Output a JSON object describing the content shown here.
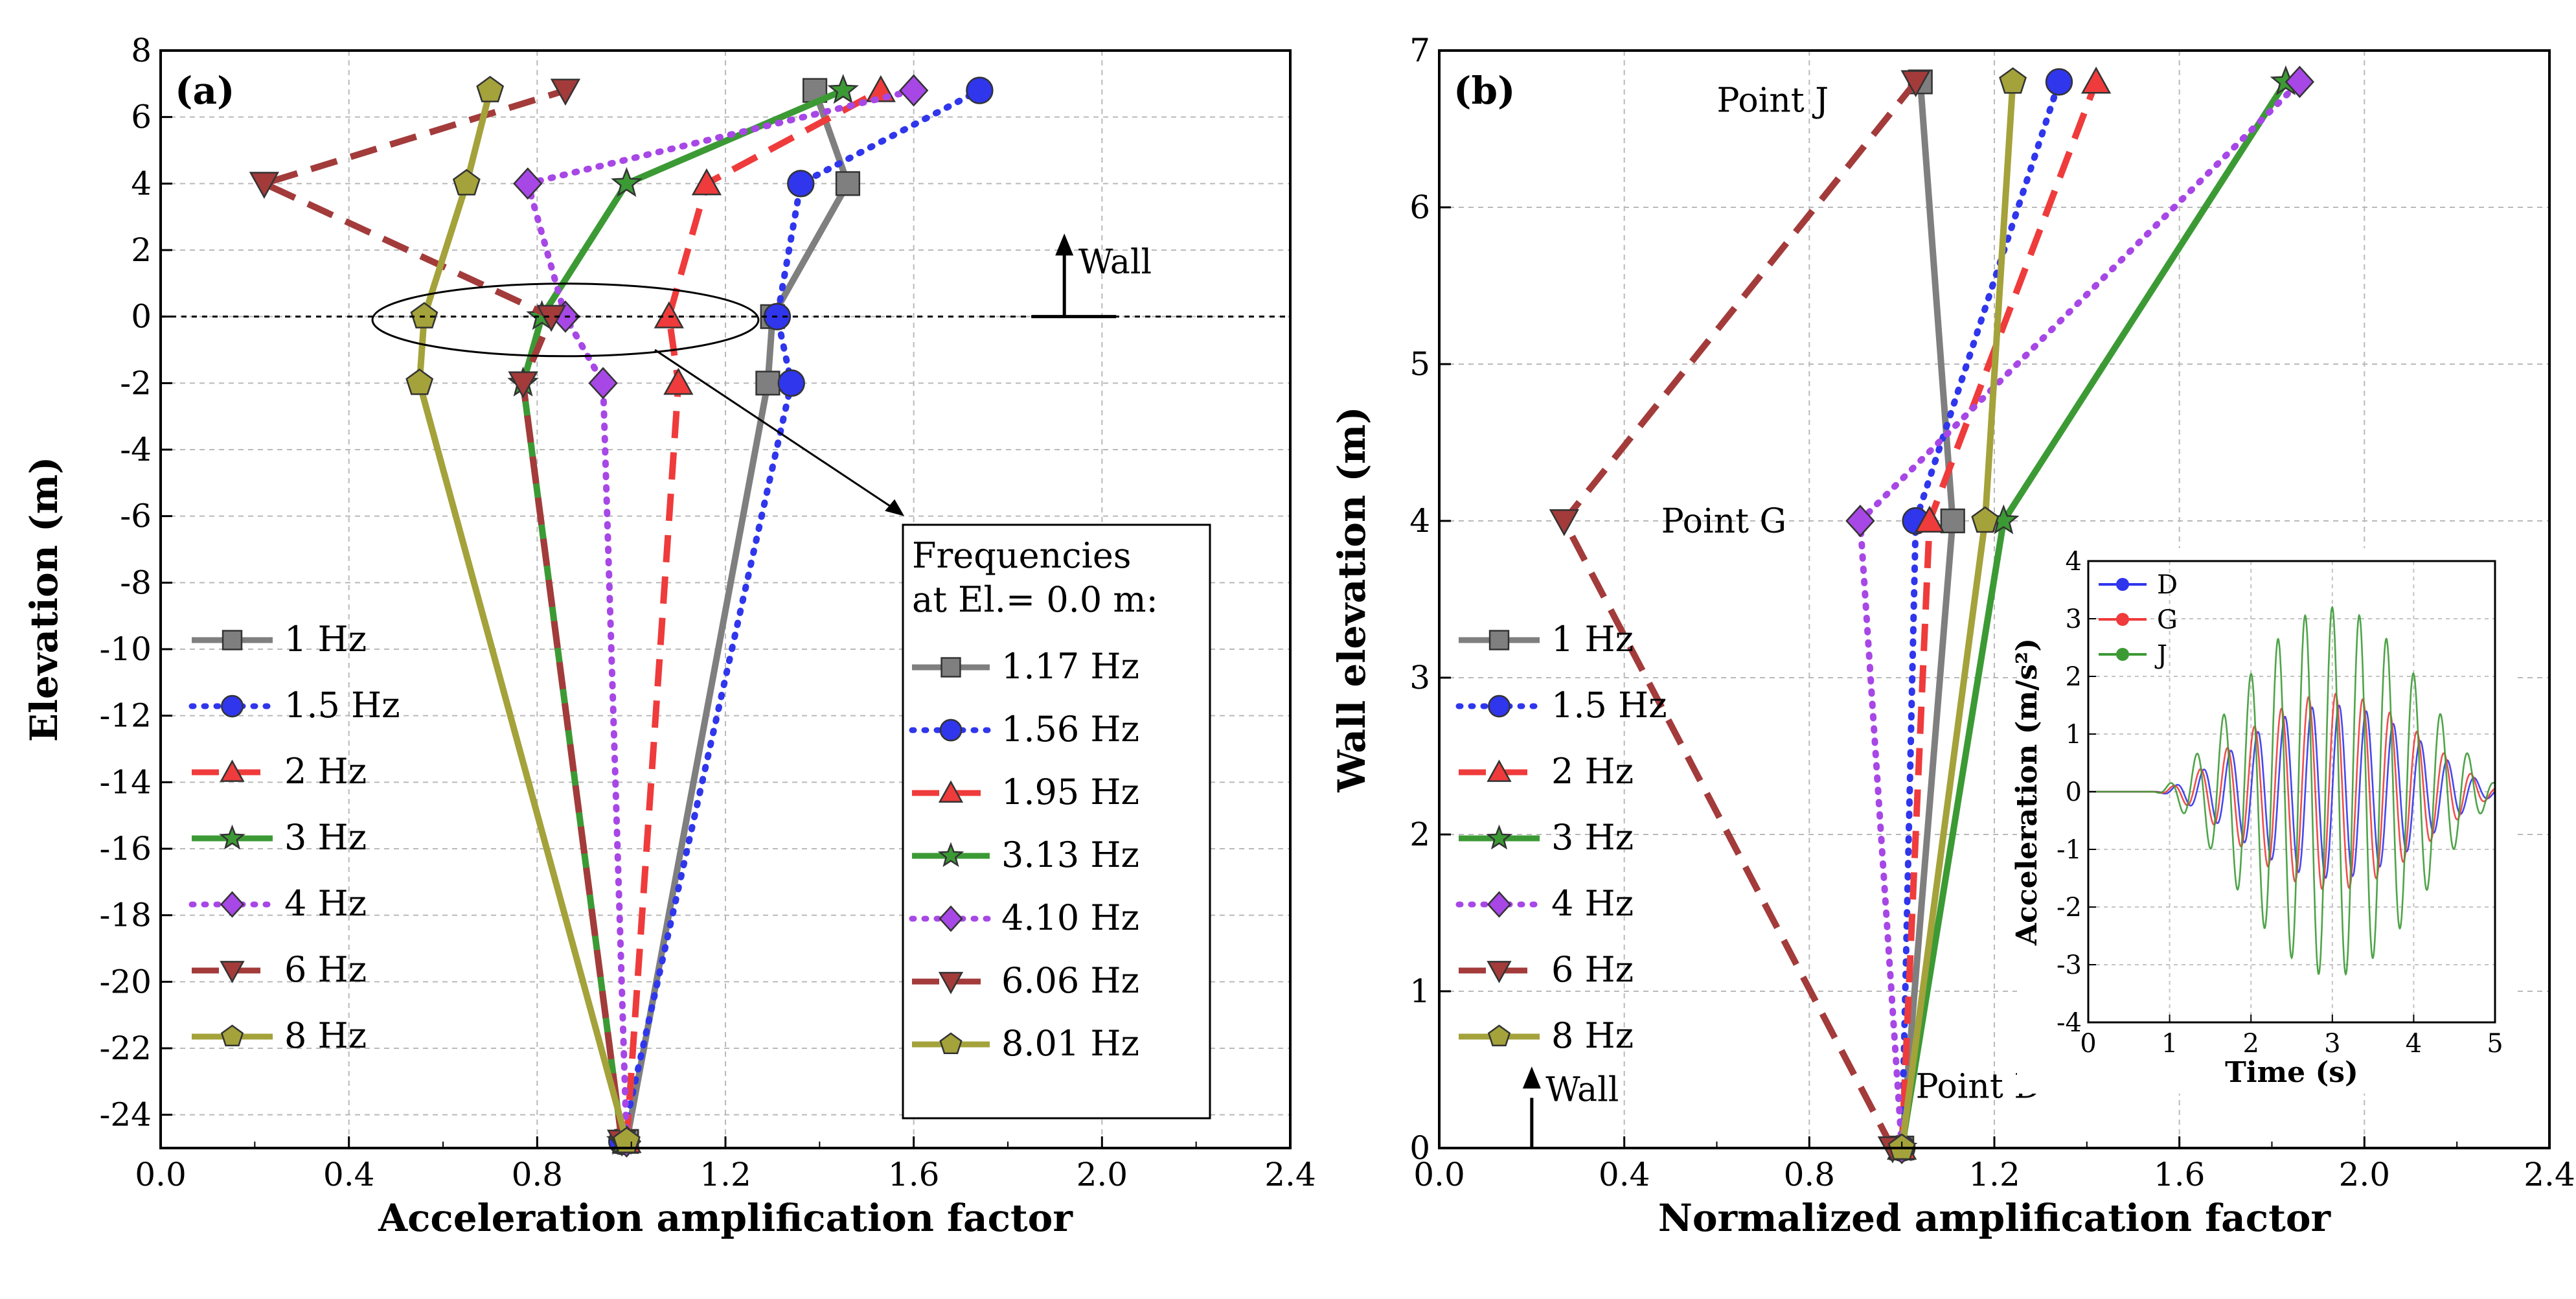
{
  "styles": {
    "1 Hz": {
      "color": "#7f7f7f",
      "marker": "square",
      "dash": "solid"
    },
    "1.5 Hz": {
      "color": "#2f36ec",
      "marker": "circle",
      "dash": "dot"
    },
    "2 Hz": {
      "color": "#ef3b3b",
      "marker": "triangle",
      "dash": "dash"
    },
    "3 Hz": {
      "color": "#3c9a35",
      "marker": "star",
      "dash": "solid"
    },
    "4 Hz": {
      "color": "#a747e6",
      "marker": "diamond",
      "dash": "dot"
    },
    "6 Hz": {
      "color": "#a33b3b",
      "marker": "triangle-down",
      "dash": "dash"
    },
    "8 Hz": {
      "color": "#a4a23a",
      "marker": "pentagon",
      "dash": "solid"
    }
  },
  "chart_data": [
    {
      "type": "line",
      "panel_label": "(a)",
      "xlabel": "Acceleration amplification factor",
      "ylabel": "Elevation (m)",
      "xlim": [
        0.0,
        2.4
      ],
      "ylim": [
        -25,
        8
      ],
      "xticks": [
        "0.0",
        "0.4",
        "0.8",
        "1.2",
        "1.6",
        "2.0",
        "2.4"
      ],
      "yticks": [
        "-24",
        "-22",
        "-20",
        "-18",
        "-16",
        "-14",
        "-12",
        "-10",
        "-8",
        "-6",
        "-4",
        "-2",
        "0",
        "2",
        "4",
        "6",
        "8"
      ],
      "grid": true,
      "legend_position": "left",
      "series": [
        {
          "name": "1 Hz",
          "label": "1 Hz",
          "x": [
            0.99,
            1.29,
            1.3,
            1.46,
            1.39
          ],
          "y": [
            -24.8,
            -2,
            0,
            4,
            6.8
          ]
        },
        {
          "name": "1.5 Hz",
          "label": "1.5 Hz",
          "x": [
            0.98,
            1.34,
            1.31,
            1.36,
            1.74
          ],
          "y": [
            -24.8,
            -2,
            0,
            4,
            6.8
          ]
        },
        {
          "name": "2 Hz",
          "label": "2 Hz",
          "x": [
            0.99,
            1.1,
            1.08,
            1.16,
            1.53
          ],
          "y": [
            -24.8,
            -2,
            0,
            4,
            6.8
          ]
        },
        {
          "name": "3 Hz",
          "label": "3 Hz",
          "x": [
            0.98,
            0.77,
            0.81,
            0.99,
            1.45
          ],
          "y": [
            -24.8,
            -2,
            0,
            4,
            6.8
          ]
        },
        {
          "name": "4 Hz",
          "label": "4 Hz",
          "x": [
            0.99,
            0.94,
            0.86,
            0.78,
            1.6
          ],
          "y": [
            -24.8,
            -2,
            0,
            4,
            6.8
          ]
        },
        {
          "name": "6 Hz",
          "label": "6 Hz",
          "x": [
            0.98,
            0.77,
            0.83,
            0.22,
            0.86
          ],
          "y": [
            -24.8,
            -2,
            0,
            4,
            6.8
          ]
        },
        {
          "name": "8 Hz",
          "label": "8 Hz",
          "x": [
            0.99,
            0.55,
            0.56,
            0.65,
            0.7
          ],
          "y": [
            -24.8,
            -2,
            0,
            4,
            6.8
          ]
        }
      ],
      "annotations": {
        "wall_label": "Wall"
      },
      "freq_legend": {
        "title_line1": "Frequencies",
        "title_line2": "at El.= 0.0 m:",
        "entries": [
          {
            "style": "1 Hz",
            "label": "1.17 Hz"
          },
          {
            "style": "1.5 Hz",
            "label": "1.56 Hz"
          },
          {
            "style": "2 Hz",
            "label": "1.95 Hz"
          },
          {
            "style": "3 Hz",
            "label": "3.13 Hz"
          },
          {
            "style": "4 Hz",
            "label": "4.10 Hz"
          },
          {
            "style": "6 Hz",
            "label": "6.06 Hz"
          },
          {
            "style": "8 Hz",
            "label": "8.01 Hz"
          }
        ]
      }
    },
    {
      "type": "line",
      "panel_label": "(b)",
      "xlabel": "Normalized amplification factor",
      "ylabel": "Wall elevation (m)",
      "xlim": [
        0.0,
        2.4
      ],
      "ylim": [
        0,
        7
      ],
      "xticks": [
        "0.0",
        "0.4",
        "0.8",
        "1.2",
        "1.6",
        "2.0",
        "2.4"
      ],
      "yticks": [
        "0",
        "1",
        "2",
        "3",
        "4",
        "5",
        "6",
        "7"
      ],
      "grid": true,
      "legend_position": "left",
      "series": [
        {
          "name": "1 Hz",
          "label": "1 Hz",
          "x": [
            1.0,
            1.11,
            1.04
          ],
          "y": [
            0,
            4,
            6.8
          ]
        },
        {
          "name": "1.5 Hz",
          "label": "1.5 Hz",
          "x": [
            1.0,
            1.03,
            1.34
          ],
          "y": [
            0,
            4,
            6.8
          ]
        },
        {
          "name": "2 Hz",
          "label": "2 Hz",
          "x": [
            1.0,
            1.06,
            1.42
          ],
          "y": [
            0,
            4,
            6.8
          ]
        },
        {
          "name": "3 Hz",
          "label": "3 Hz",
          "x": [
            1.0,
            1.22,
            1.83
          ],
          "y": [
            0,
            4,
            6.8
          ]
        },
        {
          "name": "4 Hz",
          "label": "4 Hz",
          "x": [
            1.0,
            0.91,
            1.86
          ],
          "y": [
            0,
            4,
            6.8
          ]
        },
        {
          "name": "6 Hz",
          "label": "6 Hz",
          "x": [
            0.98,
            0.27,
            1.03
          ],
          "y": [
            0,
            4,
            6.8
          ]
        },
        {
          "name": "8 Hz",
          "label": "8 Hz",
          "x": [
            1.0,
            1.18,
            1.24
          ],
          "y": [
            0,
            4,
            6.8
          ]
        }
      ],
      "annotations": {
        "point_j": "Point J",
        "point_g": "Point G",
        "point_d": "Point D",
        "wall_label": "Wall"
      },
      "inset": {
        "type": "line",
        "xlabel": "Time (s)",
        "ylabel": "Acceleration (m/s²)",
        "xlim": [
          0,
          5
        ],
        "ylim": [
          -4,
          4
        ],
        "xticks": [
          "0",
          "1",
          "2",
          "3",
          "4",
          "5"
        ],
        "yticks": [
          "-4",
          "-3",
          "-2",
          "-1",
          "0",
          "1",
          "2",
          "3",
          "4"
        ],
        "frequency_hz": 3,
        "series": [
          {
            "name": "D",
            "label": "D",
            "color": "#2f36ec",
            "peak": 1.5
          },
          {
            "name": "G",
            "label": "G",
            "color": "#ef3b3b",
            "peak": 1.7
          },
          {
            "name": "J",
            "label": "J",
            "color": "#3c9a35",
            "peak": 3.2
          }
        ]
      }
    }
  ]
}
